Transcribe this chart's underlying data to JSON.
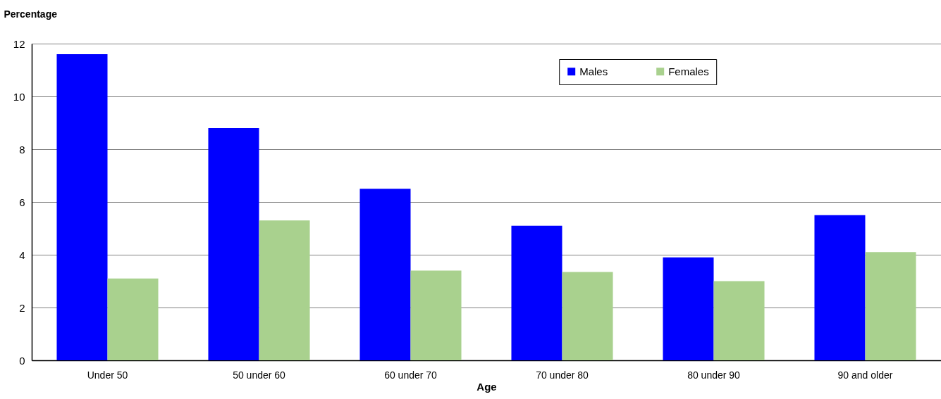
{
  "chart_data": {
    "type": "bar",
    "xlabel": "Age",
    "ylabel": "Percentage",
    "categories": [
      "Under 50",
      "50 under 60",
      "60 under 70",
      "70 under 80",
      "80 under 90",
      "90 and older"
    ],
    "series": [
      {
        "name": "Males",
        "color": "#0000ff",
        "values": [
          11.6,
          8.8,
          6.5,
          5.1,
          3.9,
          5.5
        ]
      },
      {
        "name": "Females",
        "color": "#a9d18e",
        "values": [
          3.1,
          5.3,
          3.4,
          3.35,
          3.0,
          4.1
        ]
      }
    ],
    "ylim": [
      0,
      12
    ],
    "yticks": [
      0,
      2,
      4,
      6,
      8,
      10,
      12
    ],
    "grid": "y",
    "legend": "top right"
  }
}
